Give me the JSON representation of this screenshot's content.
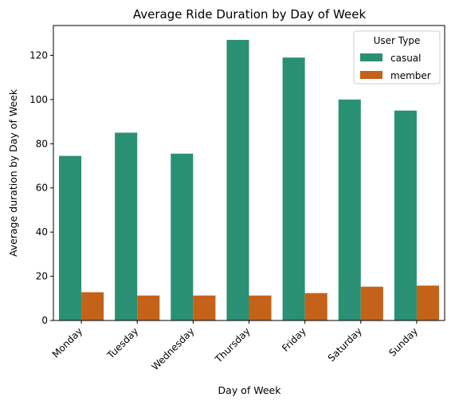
{
  "chart_data": {
    "type": "bar",
    "title": "Average Ride Duration by Day of Week",
    "xlabel": "Day of Week",
    "ylabel": "Average duration by Day of Week",
    "categories": [
      "Monday",
      "Tuesday",
      "Wednesday",
      "Thursday",
      "Friday",
      "Saturday",
      "Sunday"
    ],
    "series": [
      {
        "name": "casual",
        "color": "#2a9073",
        "values": [
          74.5,
          85,
          75.5,
          127,
          119,
          100,
          95
        ]
      },
      {
        "name": "member",
        "color": "#c4621a",
        "values": [
          12.8,
          11.3,
          11.3,
          11.3,
          12.4,
          15.3,
          15.8
        ]
      }
    ],
    "ylim": [
      0,
      133.5
    ],
    "yticks": [
      0,
      20,
      40,
      60,
      80,
      100,
      120
    ],
    "legend": {
      "title": "User Type",
      "placement": "top-right"
    },
    "grid": false
  }
}
